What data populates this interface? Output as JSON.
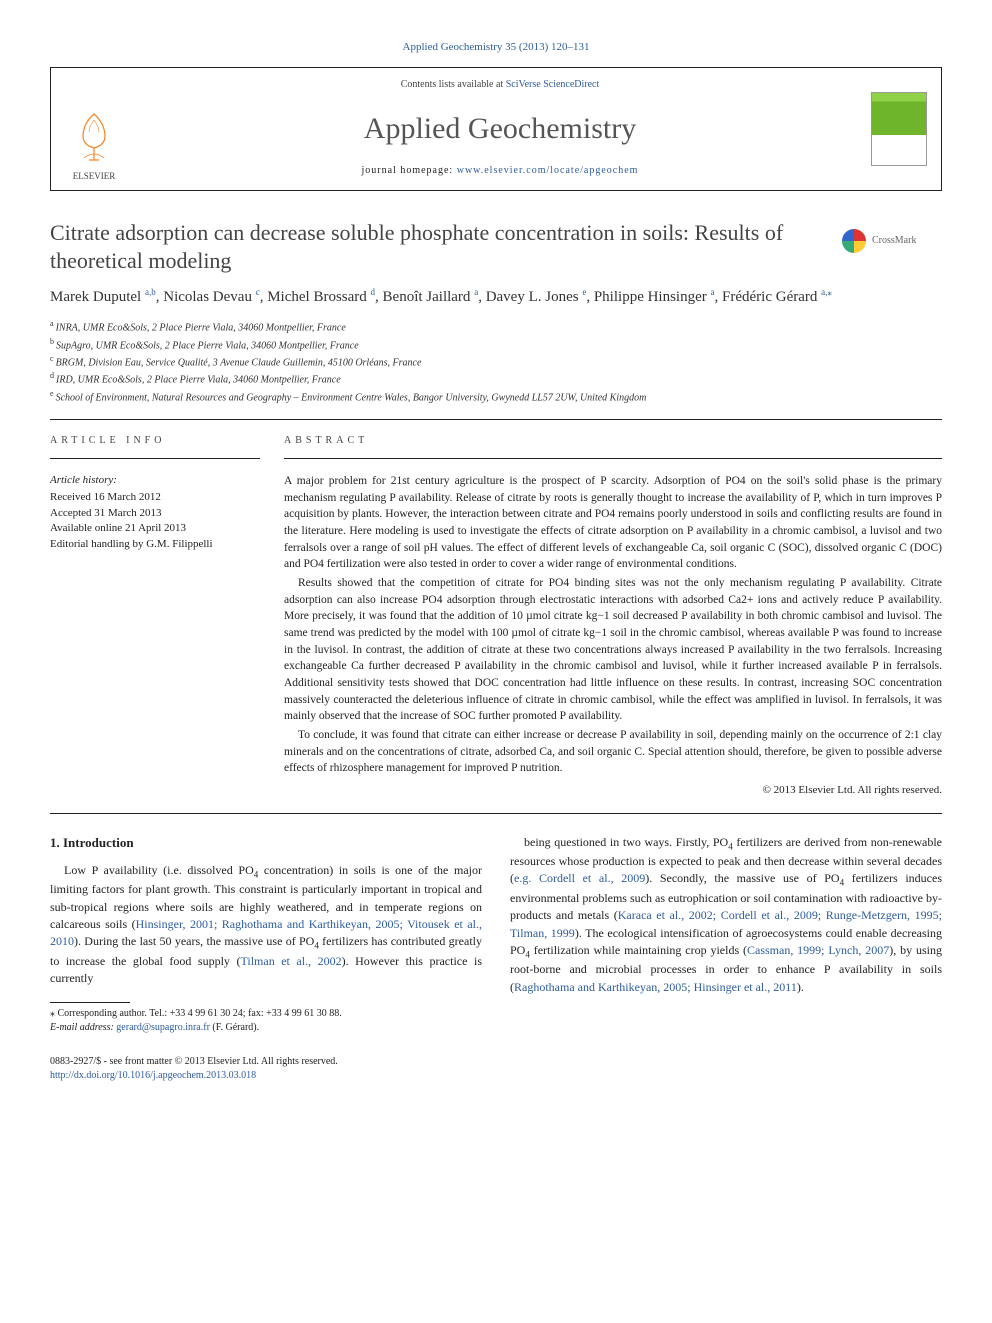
{
  "topLink": "Applied Geochemistry 35 (2013) 120–131",
  "header": {
    "contentsPrefix": "Contents lists available at ",
    "contentsLink": "SciVerse ScienceDirect",
    "journalTitle": "Applied Geochemistry",
    "homepagePrefix": "journal homepage: ",
    "homepageLink": "www.elsevier.com/locate/apgeochem",
    "publisherWord": "ELSEVIER"
  },
  "crossmark": "CrossMark",
  "title": "Citrate adsorption can decrease soluble phosphate concentration in soils: Results of theoretical modeling",
  "authorsLine": {
    "parts": [
      {
        "name": "Marek Duputel",
        "sup": "a,b"
      },
      {
        "name": "Nicolas Devau",
        "sup": "c"
      },
      {
        "name": "Michel Brossard",
        "sup": "d"
      },
      {
        "name": "Benoît Jaillard",
        "sup": "a"
      },
      {
        "name": "Davey L. Jones",
        "sup": "e"
      },
      {
        "name": "Philippe Hinsinger",
        "sup": "a"
      },
      {
        "name": "Frédéric Gérard",
        "sup": "a,",
        "star": true
      }
    ]
  },
  "affiliations": [
    {
      "key": "a",
      "text": "INRA, UMR Eco&Sols, 2 Place Pierre Viala, 34060 Montpellier, France"
    },
    {
      "key": "b",
      "text": "SupAgro, UMR Eco&Sols, 2 Place Pierre Viala, 34060 Montpellier, France"
    },
    {
      "key": "c",
      "text": "BRGM, Division Eau, Service Qualité, 3 Avenue Claude Guillemin, 45100 Orléans, France"
    },
    {
      "key": "d",
      "text": "IRD, UMR Eco&Sols, 2 Place Pierre Viala, 34060 Montpellier, France"
    },
    {
      "key": "e",
      "text": "School of Environment, Natural Resources and Geography – Environment Centre Wales, Bangor University, Gwynedd LL57 2UW, United Kingdom"
    }
  ],
  "infoLabel": "ARTICLE INFO",
  "abstractLabel": "ABSTRACT",
  "history": {
    "label": "Article history:",
    "received": "Received 16 March 2012",
    "accepted": "Accepted 31 March 2013",
    "online": "Available online 21 April 2013",
    "editorial": "Editorial handling by G.M. Filippelli"
  },
  "abstract": {
    "p1": "A major problem for 21st century agriculture is the prospect of P scarcity. Adsorption of PO4 on the soil's solid phase is the primary mechanism regulating P availability. Release of citrate by roots is generally thought to increase the availability of P, which in turn improves P acquisition by plants. However, the interaction between citrate and PO4 remains poorly understood in soils and conflicting results are found in the literature. Here modeling is used to investigate the effects of citrate adsorption on P availability in a chromic cambisol, a luvisol and two ferralsols over a range of soil pH values. The effect of different levels of exchangeable Ca, soil organic C (SOC), dissolved organic C (DOC) and PO4 fertilization were also tested in order to cover a wider range of environmental conditions.",
    "p2": "Results showed that the competition of citrate for PO4 binding sites was not the only mechanism regulating P availability. Citrate adsorption can also increase PO4 adsorption through electrostatic interactions with adsorbed Ca2+ ions and actively reduce P availability. More precisely, it was found that the addition of 10 µmol citrate kg−1 soil decreased P availability in both chromic cambisol and luvisol. The same trend was predicted by the model with 100 µmol of citrate kg−1 soil in the chromic cambisol, whereas available P was found to increase in the luvisol. In contrast, the addition of citrate at these two concentrations always increased P availability in the two ferralsols. Increasing exchangeable Ca further decreased P availability in the chromic cambisol and luvisol, while it further increased available P in ferralsols. Additional sensitivity tests showed that DOC concentration had little influence on these results. In contrast, increasing SOC concentration massively counteracted the deleterious influence of citrate in chromic cambisol, while the effect was amplified in luvisol. In ferralsols, it was mainly observed that the increase of SOC further promoted P availability.",
    "p3": "To conclude, it was found that citrate can either increase or decrease P availability in soil, depending mainly on the occurrence of 2:1 clay minerals and on the concentrations of citrate, adsorbed Ca, and soil organic C. Special attention should, therefore, be given to possible adverse effects of rhizosphere management for improved P nutrition."
  },
  "copyright": "© 2013 Elsevier Ltd. All rights reserved.",
  "section1": {
    "heading": "1. Introduction",
    "leftPara": "Low P availability (i.e. dissolved PO4 concentration) in soils is one of the major limiting factors for plant growth. This constraint is particularly important in tropical and sub-tropical regions where soils are highly weathered, and in temperate regions on calcareous soils (Hinsinger, 2001; Raghothama and Karthikeyan, 2005; Vitousek et al., 2010). During the last 50 years, the massive use of PO4 fertilizers has contributed greatly to increase the global food supply (Tilman et al., 2002). However this practice is currently",
    "rightPara": "being questioned in two ways. Firstly, PO4 fertilizers are derived from non-renewable resources whose production is expected to peak and then decrease within several decades (e.g. Cordell et al., 2009). Secondly, the massive use of PO4 fertilizers induces environmental problems such as eutrophication or soil contamination with radioactive by-products and metals (Karaca et al., 2002; Cordell et al., 2009; Runge-Metzgern, 1995; Tilman, 1999). The ecological intensification of agroecosystems could enable decreasing PO4 fertilization while maintaining crop yields (Cassman, 1999; Lynch, 2007), by using root-borne and microbial processes in order to enhance P availability in soils (Raghothama and Karthikeyan, 2005; Hinsinger et al., 2011)."
  },
  "footnote": {
    "corresponding": "⁎ Corresponding author. Tel.: +33 4 99 61 30 24; fax: +33 4 99 61 30 88.",
    "emailLabel": "E-mail address:",
    "email": "gerard@supagro.inra.fr",
    "emailSuffix": " (F. Gérard)."
  },
  "bottom": {
    "issn": "0883-2927/$ - see front matter © 2013 Elsevier Ltd. All rights reserved.",
    "doi": "http://dx.doi.org/10.1016/j.apgeochem.2013.03.018"
  },
  "colors": {
    "link": "#2e5c9e",
    "text": "#222222",
    "muted": "#555555"
  }
}
